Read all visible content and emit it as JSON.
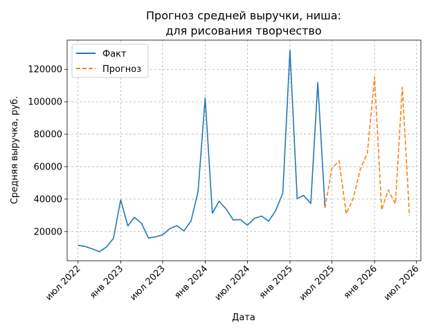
{
  "chart_data": {
    "type": "line",
    "title_line1": "Прогноз средней выручки, ниша:",
    "title_line2": "для рисования творчество",
    "xlabel": "Дата",
    "ylabel": "Средняя выручка, руб.",
    "ylim": [
      2000,
      138000
    ],
    "xlim": [
      "2022-05-15",
      "2026-07-20"
    ],
    "grid": true,
    "legend_position": "top-left",
    "x_ticks": [
      {
        "date": "2022-07-01",
        "label": "июл 2022"
      },
      {
        "date": "2023-01-01",
        "label": "янв 2023"
      },
      {
        "date": "2023-07-01",
        "label": "июл 2023"
      },
      {
        "date": "2024-01-01",
        "label": "янв 2024"
      },
      {
        "date": "2024-07-01",
        "label": "июл 2024"
      },
      {
        "date": "2025-01-01",
        "label": "янв 2025"
      },
      {
        "date": "2025-07-01",
        "label": "июл 2025"
      },
      {
        "date": "2026-01-01",
        "label": "янв 2026"
      },
      {
        "date": "2026-07-01",
        "label": "июл 2026"
      }
    ],
    "y_ticks": [
      20000,
      40000,
      60000,
      80000,
      100000,
      120000
    ],
    "y_tick_labels": [
      "20000",
      "40000",
      "60000",
      "80000",
      "100000",
      "120000"
    ],
    "series": [
      {
        "name": "Факт",
        "color": "#1f77b4",
        "style": "solid",
        "points": [
          {
            "x": "2022-07-01",
            "y": 11500
          },
          {
            "x": "2022-08-01",
            "y": 10800
          },
          {
            "x": "2022-09-01",
            "y": 9300
          },
          {
            "x": "2022-10-01",
            "y": 7600
          },
          {
            "x": "2022-11-01",
            "y": 10500
          },
          {
            "x": "2022-12-01",
            "y": 15800
          },
          {
            "x": "2023-01-01",
            "y": 39500
          },
          {
            "x": "2023-02-01",
            "y": 23500
          },
          {
            "x": "2023-03-01",
            "y": 28800
          },
          {
            "x": "2023-04-01",
            "y": 25100
          },
          {
            "x": "2023-05-01",
            "y": 16000
          },
          {
            "x": "2023-06-01",
            "y": 16700
          },
          {
            "x": "2023-07-01",
            "y": 18000
          },
          {
            "x": "2023-08-01",
            "y": 21800
          },
          {
            "x": "2023-09-01",
            "y": 23600
          },
          {
            "x": "2023-10-01",
            "y": 20400
          },
          {
            "x": "2023-11-01",
            "y": 26500
          },
          {
            "x": "2023-12-01",
            "y": 44600
          },
          {
            "x": "2024-01-01",
            "y": 102300
          },
          {
            "x": "2024-02-01",
            "y": 31300
          },
          {
            "x": "2024-03-01",
            "y": 38700
          },
          {
            "x": "2024-04-01",
            "y": 33800
          },
          {
            "x": "2024-05-01",
            "y": 27100
          },
          {
            "x": "2024-06-01",
            "y": 27400
          },
          {
            "x": "2024-07-01",
            "y": 23900
          },
          {
            "x": "2024-08-01",
            "y": 28200
          },
          {
            "x": "2024-09-01",
            "y": 29500
          },
          {
            "x": "2024-10-01",
            "y": 26400
          },
          {
            "x": "2024-11-01",
            "y": 33100
          },
          {
            "x": "2024-12-01",
            "y": 43800
          },
          {
            "x": "2025-01-01",
            "y": 131800
          },
          {
            "x": "2025-02-01",
            "y": 40300
          },
          {
            "x": "2025-03-01",
            "y": 42300
          },
          {
            "x": "2025-04-01",
            "y": 37300
          },
          {
            "x": "2025-05-01",
            "y": 111900
          },
          {
            "x": "2025-06-01",
            "y": 34900
          }
        ]
      },
      {
        "name": "Прогноз",
        "color": "#ff7f0e",
        "style": "dashed",
        "points": [
          {
            "x": "2025-06-01",
            "y": 34500
          },
          {
            "x": "2025-07-01",
            "y": 58900
          },
          {
            "x": "2025-08-01",
            "y": 63600
          },
          {
            "x": "2025-09-01",
            "y": 30900
          },
          {
            "x": "2025-10-01",
            "y": 40400
          },
          {
            "x": "2025-11-01",
            "y": 58600
          },
          {
            "x": "2025-12-01",
            "y": 68400
          },
          {
            "x": "2026-01-01",
            "y": 115300
          },
          {
            "x": "2026-02-01",
            "y": 33300
          },
          {
            "x": "2026-03-01",
            "y": 45600
          },
          {
            "x": "2026-04-01",
            "y": 37100
          },
          {
            "x": "2026-05-01",
            "y": 108900
          },
          {
            "x": "2026-06-01",
            "y": 29800
          }
        ]
      }
    ]
  }
}
